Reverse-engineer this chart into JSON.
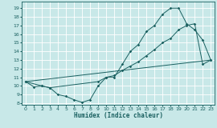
{
  "xlabel": "Humidex (Indice chaleur)",
  "bg_color": "#c8e8e8",
  "grid_color": "#b0d8d8",
  "line_color": "#1a6060",
  "xlim": [
    -0.5,
    23.5
  ],
  "ylim": [
    7.8,
    19.8
  ],
  "xticks": [
    0,
    1,
    2,
    3,
    4,
    5,
    6,
    7,
    8,
    9,
    10,
    11,
    12,
    13,
    14,
    15,
    16,
    17,
    18,
    19,
    20,
    21,
    22,
    23
  ],
  "yticks": [
    8,
    9,
    10,
    11,
    12,
    13,
    14,
    15,
    16,
    17,
    18,
    19
  ],
  "line1_x": [
    0,
    1,
    2,
    3,
    4,
    5,
    6,
    7,
    8,
    9,
    10,
    11,
    12,
    13,
    14,
    15,
    16,
    17,
    18,
    19,
    20,
    21,
    22,
    23
  ],
  "line1_y": [
    10.5,
    9.9,
    10.0,
    9.8,
    9.0,
    8.8,
    8.4,
    8.1,
    8.4,
    10.0,
    11.0,
    11.0,
    12.5,
    14.0,
    14.8,
    16.3,
    17.0,
    18.3,
    19.0,
    19.0,
    17.2,
    16.5,
    15.3,
    13.0
  ],
  "line2_x": [
    0,
    2,
    3,
    9,
    10,
    11,
    12,
    13,
    14,
    15,
    16,
    17,
    18,
    19,
    20,
    21,
    22,
    23
  ],
  "line2_y": [
    10.5,
    10.0,
    9.8,
    10.5,
    11.0,
    11.2,
    11.8,
    12.3,
    12.8,
    13.5,
    14.2,
    15.0,
    15.5,
    16.5,
    17.0,
    17.2,
    12.5,
    13.0
  ],
  "line3_x": [
    0,
    23
  ],
  "line3_y": [
    10.5,
    13.0
  ]
}
